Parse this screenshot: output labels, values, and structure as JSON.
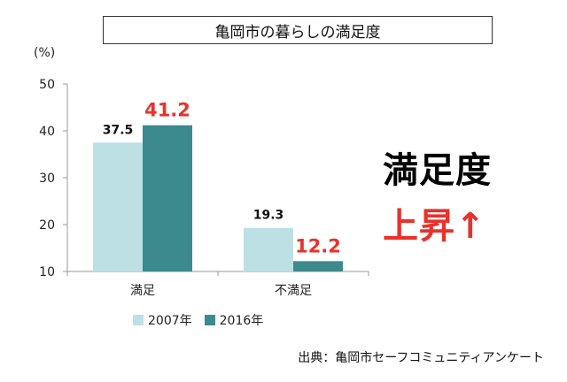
{
  "title": "亀岡市の暮らしの満足度",
  "headline": {
    "line1": "満足度",
    "line2": "上昇↑",
    "line1_color": "#000000",
    "line2_color": "#e8322b"
  },
  "source": "出典：亀岡市セーフコミュニティアンケート",
  "colors": {
    "series_2007": "#bde0e4",
    "series_2016": "#3c8a8e",
    "label_2007": "#111111",
    "label_2016": "#e8322b",
    "axis": "#999999"
  },
  "chart_data": {
    "type": "bar",
    "categories": [
      "満足",
      "不満足"
    ],
    "series": [
      {
        "name": "2007年",
        "values": [
          37.5,
          19.3
        ]
      },
      {
        "name": "2016年",
        "values": [
          41.2,
          12.2
        ]
      }
    ],
    "ylabel": "(%)",
    "ylim": [
      10,
      50
    ],
    "yticks": [
      10,
      20,
      30,
      40,
      50
    ],
    "grid": false,
    "legend": "bottom"
  }
}
